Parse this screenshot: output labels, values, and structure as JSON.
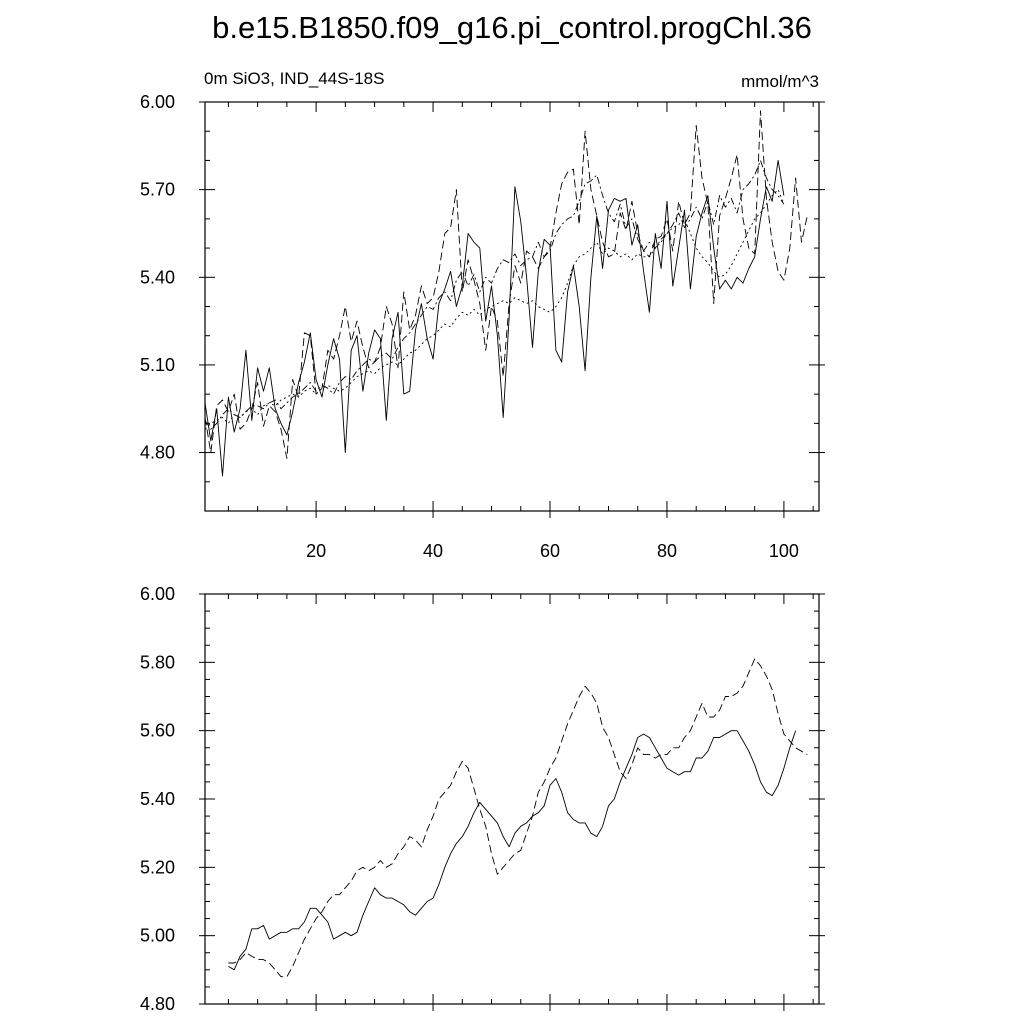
{
  "figure_title": "b.e15.B1850.f09_g16.pi_control.progChl.36",
  "chart_data": [
    {
      "type": "line",
      "left_label": "0m SiO3, IND_44S-18S",
      "right_label": "mmol/m^3",
      "xlim": [
        1,
        106
      ],
      "ylim": [
        4.6,
        6.0
      ],
      "x_ticks": [
        20,
        40,
        60,
        80,
        100
      ],
      "x_ticks_labeled": true,
      "x_minor_step": 5,
      "y_ticks": [
        4.8,
        5.1,
        5.4,
        5.7,
        6.0
      ],
      "y_tick_labels": [
        "4.80",
        "5.10",
        "5.40",
        "5.70",
        "6.00"
      ],
      "y_minor_step": 0.1,
      "x_start": 1,
      "series": [
        {
          "style": "solid",
          "values": [
            4.97,
            4.84,
            4.95,
            4.72,
            4.99,
            4.87,
            4.95,
            5.15,
            4.91,
            5.09,
            5.01,
            5.09,
            4.95,
            4.9,
            4.86,
            4.94,
            5.04,
            5.11,
            5.21,
            5.05,
            4.99,
            5.1,
            5.19,
            5.12,
            4.8,
            5.15,
            5.2,
            5.01,
            5.14,
            5.22,
            5.19,
            4.91,
            5.19,
            5.28,
            5.0,
            5.01,
            5.22,
            5.31,
            5.19,
            5.12,
            5.31,
            5.36,
            5.42,
            5.3,
            5.37,
            5.55,
            5.52,
            5.5,
            5.25,
            5.37,
            5.2,
            4.92,
            5.26,
            5.71,
            5.59,
            5.4,
            5.16,
            5.42,
            5.53,
            5.51,
            5.15,
            5.11,
            5.35,
            5.44,
            5.3,
            5.08,
            5.4,
            5.61,
            5.43,
            5.63,
            5.67,
            5.66,
            5.67,
            5.51,
            5.58,
            5.42,
            5.28,
            5.55,
            5.43,
            5.66,
            5.37,
            5.5,
            5.63,
            5.36,
            5.54,
            5.62,
            5.68,
            5.5,
            5.36,
            5.39,
            5.36,
            5.4,
            5.38,
            5.43,
            5.47,
            5.6,
            5.71,
            5.66,
            5.8,
            5.68
          ]
        },
        {
          "style": "dashed",
          "values": [
            4.92,
            4.8,
            4.96,
            4.98,
            4.94,
            5.0,
            4.88,
            4.9,
            4.95,
            5.04,
            4.89,
            4.96,
            4.94,
            4.88,
            4.78,
            5.05,
            4.99,
            5.21,
            5.2,
            5.0,
            5.02,
            5.15,
            5.12,
            5.2,
            5.3,
            5.18,
            5.25,
            5.16,
            5.09,
            5.11,
            5.16,
            5.3,
            5.24,
            5.09,
            5.35,
            5.22,
            5.27,
            5.37,
            5.31,
            5.33,
            5.42,
            5.55,
            5.57,
            5.7,
            5.35,
            5.46,
            5.39,
            5.31,
            5.15,
            5.3,
            5.25,
            5.06,
            5.31,
            5.44,
            5.38,
            5.49,
            5.47,
            5.43,
            5.47,
            5.5,
            5.62,
            5.72,
            5.76,
            5.77,
            5.58,
            5.9,
            5.7,
            5.61,
            5.52,
            5.47,
            5.48,
            5.62,
            5.56,
            5.66,
            5.55,
            5.49,
            5.47,
            5.53,
            5.54,
            5.6,
            5.49,
            5.66,
            5.58,
            5.62,
            5.92,
            5.74,
            5.65,
            5.31,
            5.61,
            5.67,
            5.74,
            5.82,
            5.6,
            5.5,
            5.48,
            5.97,
            5.67,
            5.52,
            5.42,
            5.39,
            5.5,
            5.74,
            5.52,
            5.61
          ]
        },
        {
          "style": "dash-dot",
          "values": [
            4.91,
            4.88,
            4.9,
            4.93,
            4.95,
            4.93,
            4.92,
            4.94,
            4.96,
            4.96,
            4.95,
            4.97,
            4.98,
            4.95,
            4.97,
            4.99,
            5.0,
            5.02,
            5.04,
            5.01,
            5.03,
            5.02,
            5.0,
            5.04,
            5.06,
            5.05,
            5.08,
            5.1,
            5.12,
            5.11,
            5.13,
            5.14,
            5.12,
            5.16,
            5.19,
            5.21,
            5.24,
            5.27,
            5.3,
            5.29,
            5.33,
            5.35,
            5.32,
            5.39,
            5.42,
            5.37,
            5.41,
            5.35,
            5.4,
            5.38,
            5.43,
            5.46,
            5.45,
            5.48,
            5.44,
            5.46,
            5.47,
            5.52,
            5.47,
            5.49,
            5.55,
            5.58,
            5.6,
            5.61,
            5.66,
            5.72,
            5.73,
            5.75,
            5.68,
            5.62,
            5.59,
            5.65,
            5.57,
            5.6,
            5.53,
            5.49,
            5.52,
            5.5,
            5.53,
            5.55,
            5.58,
            5.62,
            5.57,
            5.6,
            5.64,
            5.6,
            5.66,
            5.58,
            5.68,
            5.64,
            5.67,
            5.62,
            5.7,
            5.72,
            5.75,
            5.8,
            5.74,
            5.7,
            5.68,
            5.65
          ]
        },
        {
          "style": "dotted",
          "values": [
            4.88,
            4.9,
            4.91,
            4.92,
            4.9,
            4.93,
            4.92,
            4.94,
            4.95,
            4.93,
            4.96,
            4.97,
            4.96,
            4.98,
            4.99,
            5.0,
            4.99,
            5.01,
            5.02,
            5.0,
            5.02,
            5.03,
            5.02,
            5.01,
            5.02,
            5.04,
            5.06,
            5.07,
            5.08,
            5.07,
            5.09,
            5.1,
            5.11,
            5.1,
            5.12,
            5.14,
            5.15,
            5.17,
            5.19,
            5.2,
            5.22,
            5.24,
            5.23,
            5.26,
            5.28,
            5.27,
            5.29,
            5.27,
            5.29,
            5.3,
            5.31,
            5.32,
            5.31,
            5.33,
            5.32,
            5.31,
            5.32,
            5.3,
            5.29,
            5.28,
            5.3,
            5.33,
            5.38,
            5.44,
            5.47,
            5.48,
            5.5,
            5.52,
            5.48,
            5.5,
            5.49,
            5.47,
            5.48,
            5.46,
            5.48,
            5.47,
            5.47,
            5.5,
            5.52,
            5.55,
            5.57,
            5.58,
            5.6,
            5.55,
            5.5,
            5.47,
            5.45,
            5.42,
            5.4,
            5.41,
            5.44,
            5.48,
            5.52,
            5.56,
            5.6,
            5.62,
            5.65,
            5.68,
            5.7,
            5.65
          ]
        }
      ]
    },
    {
      "type": "line",
      "xlim": [
        1,
        106
      ],
      "ylim": [
        4.8,
        6.0
      ],
      "x_ticks": [
        20,
        40,
        60,
        80,
        100
      ],
      "x_ticks_labeled": false,
      "x_minor_step": 5,
      "y_ticks": [
        4.8,
        5.0,
        5.2,
        5.4,
        5.6,
        5.8,
        6.0
      ],
      "y_tick_labels": [
        "4.80",
        "5.00",
        "5.20",
        "5.40",
        "5.60",
        "5.80",
        "6.00"
      ],
      "y_minor_step": 0.05,
      "x_start": 5,
      "series": [
        {
          "style": "solid",
          "values": [
            4.91,
            4.9,
            4.94,
            4.96,
            5.02,
            5.02,
            5.03,
            4.99,
            5.0,
            5.01,
            5.01,
            5.02,
            5.02,
            5.04,
            5.08,
            5.08,
            5.06,
            5.04,
            4.99,
            5.0,
            5.01,
            5.0,
            5.01,
            5.06,
            5.1,
            5.14,
            5.12,
            5.11,
            5.11,
            5.1,
            5.09,
            5.07,
            5.06,
            5.08,
            5.1,
            5.11,
            5.15,
            5.2,
            5.24,
            5.27,
            5.29,
            5.32,
            5.36,
            5.39,
            5.37,
            5.35,
            5.33,
            5.29,
            5.26,
            5.3,
            5.32,
            5.33,
            5.35,
            5.36,
            5.38,
            5.44,
            5.46,
            5.42,
            5.36,
            5.34,
            5.33,
            5.33,
            5.3,
            5.29,
            5.32,
            5.38,
            5.4,
            5.45,
            5.49,
            5.53,
            5.58,
            5.59,
            5.58,
            5.55,
            5.52,
            5.49,
            5.48,
            5.47,
            5.48,
            5.48,
            5.52,
            5.52,
            5.54,
            5.58,
            5.58,
            5.59,
            5.6,
            5.6,
            5.57,
            5.54,
            5.5,
            5.45,
            5.42,
            5.41,
            5.44,
            5.49,
            5.55,
            5.6
          ]
        },
        {
          "style": "dashed",
          "values": [
            4.92,
            4.92,
            4.93,
            4.95,
            4.94,
            4.93,
            4.93,
            4.92,
            4.9,
            4.88,
            4.88,
            4.91,
            4.95,
            4.99,
            5.02,
            5.05,
            5.07,
            5.1,
            5.12,
            5.12,
            5.14,
            5.16,
            5.19,
            5.2,
            5.19,
            5.2,
            5.22,
            5.2,
            5.21,
            5.24,
            5.26,
            5.29,
            5.28,
            5.26,
            5.31,
            5.35,
            5.4,
            5.42,
            5.44,
            5.48,
            5.51,
            5.49,
            5.43,
            5.37,
            5.32,
            5.24,
            5.18,
            5.2,
            5.22,
            5.24,
            5.25,
            5.3,
            5.35,
            5.42,
            5.45,
            5.49,
            5.52,
            5.57,
            5.62,
            5.66,
            5.7,
            5.73,
            5.71,
            5.68,
            5.61,
            5.58,
            5.53,
            5.48,
            5.46,
            5.5,
            5.55,
            5.53,
            5.53,
            5.52,
            5.53,
            5.53,
            5.55,
            5.55,
            5.58,
            5.6,
            5.64,
            5.68,
            5.64,
            5.64,
            5.66,
            5.7,
            5.7,
            5.71,
            5.73,
            5.77,
            5.81,
            5.79,
            5.76,
            5.72,
            5.65,
            5.59,
            5.57,
            5.55,
            5.54,
            5.53
          ]
        }
      ]
    }
  ]
}
